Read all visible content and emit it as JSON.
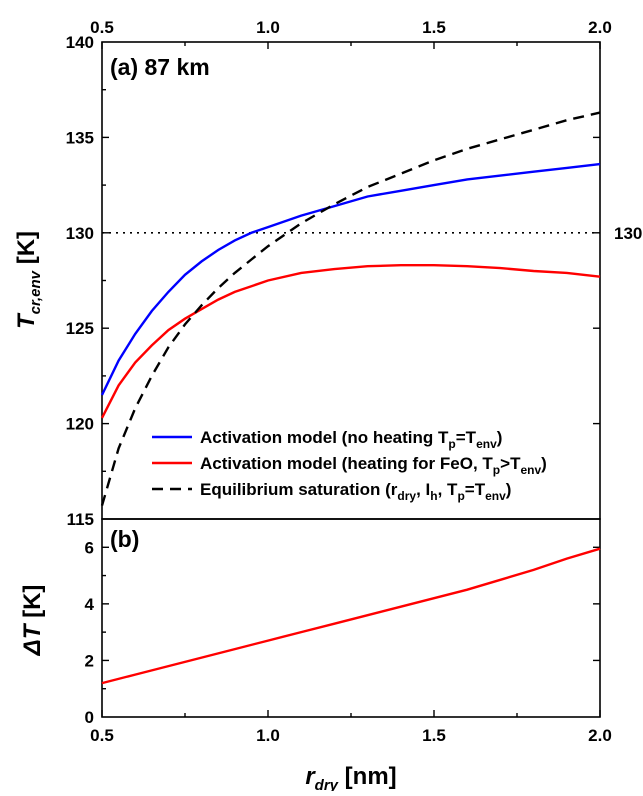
{
  "chart_data": [
    {
      "type": "line",
      "panel_label": "(a) 87 km",
      "ylabel": "T_cr,env [K]",
      "ylim": [
        115,
        140
      ],
      "xlim": [
        0.5,
        2.0
      ],
      "yticks": [
        115,
        120,
        125,
        130,
        135,
        140
      ],
      "top_xticks": [
        0.5,
        1.0,
        1.5,
        2.0
      ],
      "reference_line": {
        "y": 130,
        "style": "dotted",
        "label": "130"
      },
      "legend_position": "lower-right",
      "series": [
        {
          "name": "Activation model (no heating T_p=T_env)",
          "color": "#0000ff",
          "style": "solid",
          "x": [
            0.5,
            0.55,
            0.6,
            0.65,
            0.7,
            0.75,
            0.8,
            0.85,
            0.9,
            0.95,
            1.0,
            1.1,
            1.2,
            1.3,
            1.4,
            1.5,
            1.6,
            1.7,
            1.8,
            1.9,
            2.0
          ],
          "y": [
            121.5,
            123.3,
            124.7,
            125.9,
            126.9,
            127.8,
            128.5,
            129.1,
            129.6,
            130.0,
            130.3,
            130.9,
            131.4,
            131.9,
            132.2,
            132.5,
            132.8,
            133.0,
            133.2,
            133.4,
            133.6
          ]
        },
        {
          "name": "Activation model (heating for FeO, T_p>T_env)",
          "color": "#ff0000",
          "style": "solid",
          "x": [
            0.5,
            0.55,
            0.6,
            0.65,
            0.7,
            0.75,
            0.8,
            0.85,
            0.9,
            0.95,
            1.0,
            1.1,
            1.2,
            1.3,
            1.4,
            1.5,
            1.6,
            1.7,
            1.8,
            1.9,
            2.0
          ],
          "y": [
            120.3,
            122.0,
            123.2,
            124.1,
            124.9,
            125.5,
            126.0,
            126.5,
            126.9,
            127.2,
            127.5,
            127.9,
            128.1,
            128.25,
            128.3,
            128.3,
            128.25,
            128.15,
            128.0,
            127.9,
            127.7
          ]
        },
        {
          "name": "Equilibrium saturation (r_dry, I_h, T_p=T_env)",
          "color": "#000000",
          "style": "dashed",
          "x": [
            0.5,
            0.55,
            0.6,
            0.65,
            0.7,
            0.75,
            0.8,
            0.85,
            0.9,
            0.95,
            1.0,
            1.1,
            1.2,
            1.3,
            1.4,
            1.5,
            1.6,
            1.7,
            1.8,
            1.9,
            2.0
          ],
          "y": [
            115.7,
            118.7,
            120.8,
            122.5,
            124.0,
            125.2,
            126.2,
            127.1,
            127.9,
            128.6,
            129.3,
            130.5,
            131.5,
            132.4,
            133.1,
            133.8,
            134.4,
            134.9,
            135.4,
            135.9,
            136.3
          ]
        }
      ]
    },
    {
      "type": "line",
      "panel_label": "(b)",
      "ylabel": "ΔT [K]",
      "xlabel": "r_dry [nm]",
      "ylim": [
        0,
        7
      ],
      "xlim": [
        0.5,
        2.0
      ],
      "yticks": [
        0,
        2,
        4,
        6
      ],
      "xticks": [
        0.5,
        1.0,
        1.5,
        2.0
      ],
      "series": [
        {
          "color": "#ff0000",
          "style": "solid",
          "x": [
            0.5,
            0.6,
            0.7,
            0.8,
            0.9,
            1.0,
            1.1,
            1.2,
            1.3,
            1.4,
            1.5,
            1.6,
            1.7,
            1.8,
            1.9,
            2.0
          ],
          "y": [
            1.2,
            1.5,
            1.8,
            2.1,
            2.4,
            2.7,
            3.0,
            3.3,
            3.6,
            3.9,
            4.2,
            4.5,
            4.85,
            5.2,
            5.6,
            5.95
          ]
        }
      ]
    }
  ]
}
